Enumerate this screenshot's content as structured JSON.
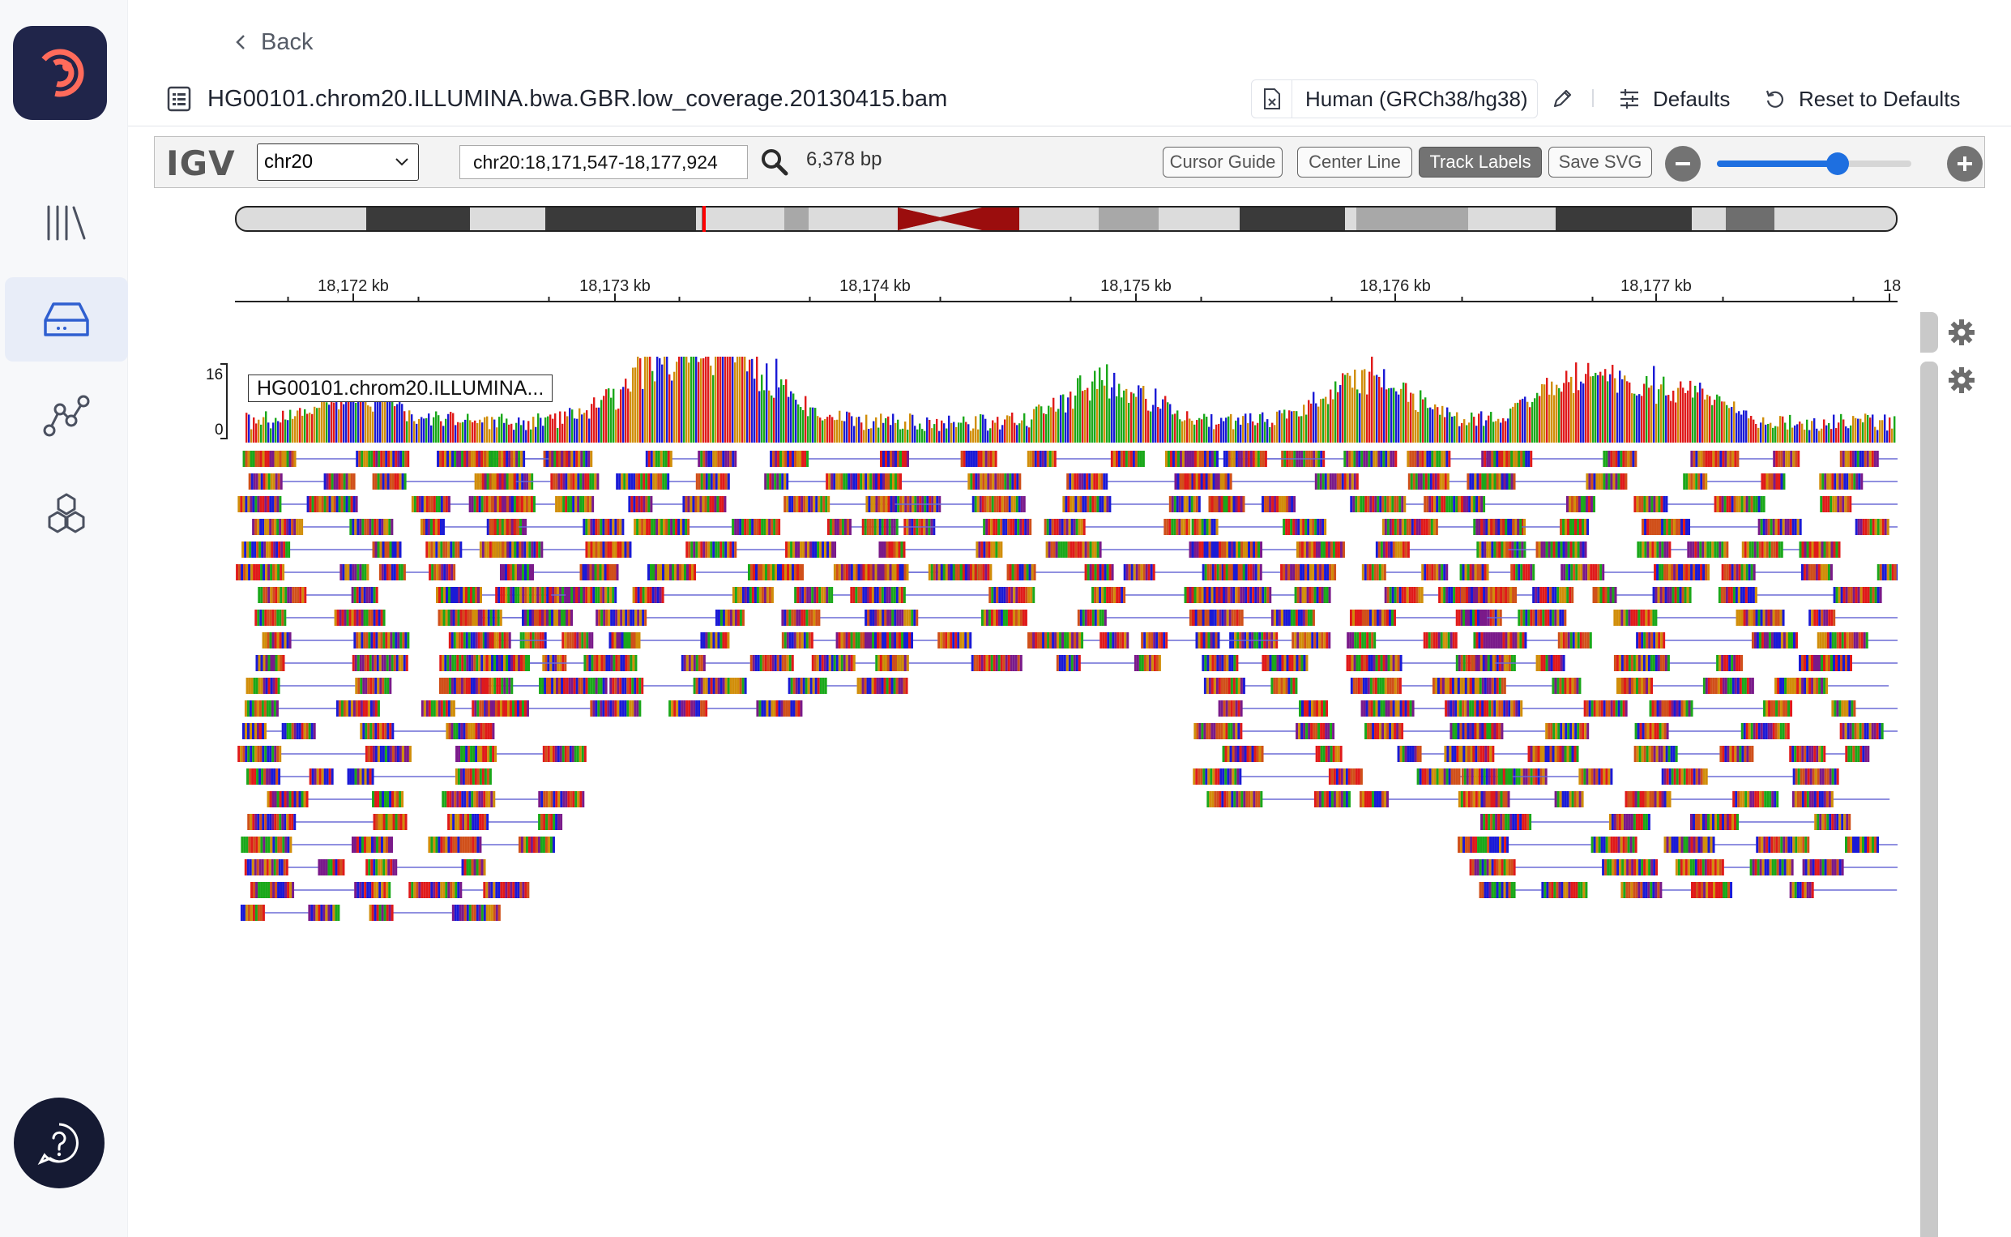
{
  "nav": {
    "back_label": "Back"
  },
  "header": {
    "file_name": "HG00101.chrom20.ILLUMINA.bwa.GBR.low_coverage.20130415.bam",
    "genome": "Human (GRCh38/hg38)",
    "defaults_label": "Defaults",
    "reset_label": "Reset to Defaults"
  },
  "igv": {
    "logo": "IGV",
    "chromosome": "chr20",
    "locus": "chr20:18,171,547-18,177,924",
    "width_bp": "6,378 bp",
    "buttons": {
      "cursor_guide": "Cursor Guide",
      "center_line": "Center Line",
      "track_labels": "Track Labels",
      "save_svg": "Save SVG"
    },
    "zoom_level": 0.62,
    "ruler_ticks": [
      "18,172 kb",
      "18,173 kb",
      "18,174 kb",
      "18,175 kb",
      "18,176 kb",
      "18,177 kb",
      "18"
    ],
    "coverage_scale_max": "16",
    "coverage_scale_min": "0",
    "track_name": "HG00101.chrom20.ILLUMINA..."
  },
  "colors": {
    "sidebar_bg": "#f7f8fa",
    "logo_bg": "#20254a",
    "logo_accent": "#ff6b5b",
    "active_nav": "#e8edf8",
    "slider": "#1e6fe0",
    "centromere": "#9b0d0d",
    "base_a": "#1aa81a",
    "base_c": "#1a1ad6",
    "base_g": "#d18e0a",
    "base_t": "#e01a1a"
  },
  "sidebar_icons": [
    "library-icon",
    "storage-icon",
    "workflow-icon",
    "cohort-icon"
  ]
}
